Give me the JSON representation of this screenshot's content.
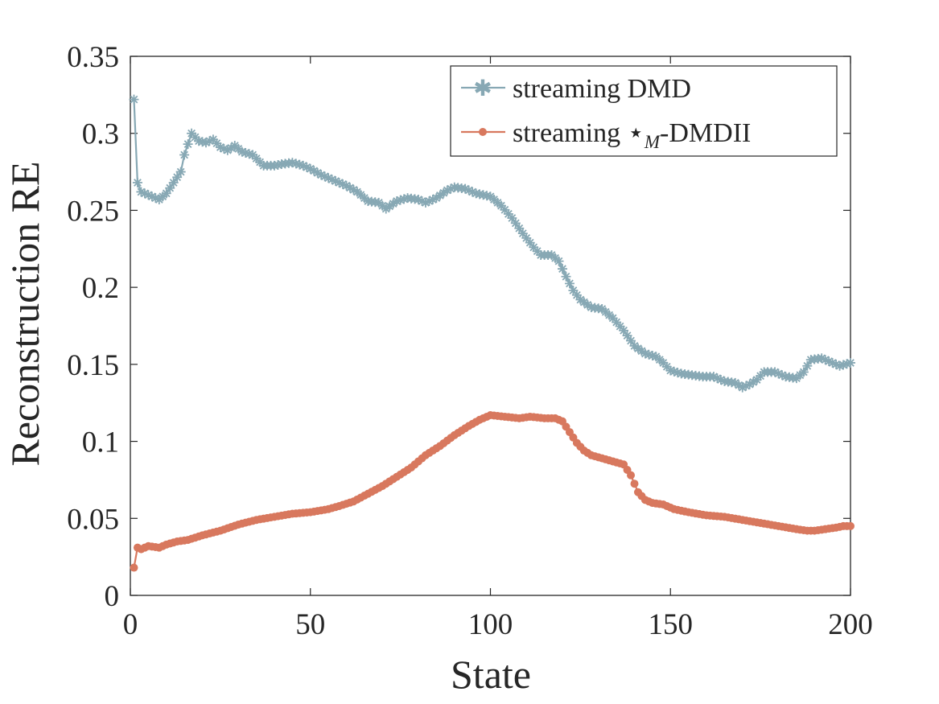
{
  "chart_data": {
    "type": "line",
    "xlabel": "State",
    "ylabel": "Reconstruction RE",
    "xlim": [
      0,
      200
    ],
    "ylim": [
      0,
      0.35
    ],
    "xticks": [
      0,
      50,
      100,
      150,
      200
    ],
    "xtick_labels": [
      "0",
      "50",
      "100",
      "150",
      "200"
    ],
    "yticks": [
      0,
      0.05,
      0.1,
      0.15,
      0.2,
      0.25,
      0.3,
      0.35
    ],
    "ytick_labels": [
      "0",
      "0.05",
      "0.1",
      "0.15",
      "0.2",
      "0.25",
      "0.3",
      "0.35"
    ],
    "legend_position": "top-right",
    "grid": false,
    "series": [
      {
        "name": "streaming DMD",
        "legend_prefix": "streaming ",
        "legend_main": "DMD",
        "color": "#87a8b4",
        "marker": "asterisk",
        "points": [
          [
            1,
            0.322
          ],
          [
            2,
            0.268
          ],
          [
            3,
            0.262
          ],
          [
            5,
            0.26
          ],
          [
            8,
            0.257
          ],
          [
            10,
            0.261
          ],
          [
            12,
            0.268
          ],
          [
            14,
            0.275
          ],
          [
            15,
            0.286
          ],
          [
            17,
            0.3
          ],
          [
            19,
            0.295
          ],
          [
            21,
            0.294
          ],
          [
            23,
            0.296
          ],
          [
            25,
            0.291
          ],
          [
            27,
            0.289
          ],
          [
            29,
            0.292
          ],
          [
            31,
            0.288
          ],
          [
            34,
            0.286
          ],
          [
            37,
            0.279
          ],
          [
            40,
            0.279
          ],
          [
            42,
            0.28
          ],
          [
            45,
            0.281
          ],
          [
            48,
            0.279
          ],
          [
            50,
            0.277
          ],
          [
            53,
            0.273
          ],
          [
            56,
            0.27
          ],
          [
            60,
            0.266
          ],
          [
            63,
            0.262
          ],
          [
            66,
            0.256
          ],
          [
            69,
            0.255
          ],
          [
            71,
            0.251
          ],
          [
            74,
            0.256
          ],
          [
            77,
            0.258
          ],
          [
            80,
            0.257
          ],
          [
            82,
            0.255
          ],
          [
            85,
            0.258
          ],
          [
            88,
            0.263
          ],
          [
            90,
            0.265
          ],
          [
            93,
            0.264
          ],
          [
            96,
            0.261
          ],
          [
            100,
            0.259
          ],
          [
            103,
            0.253
          ],
          [
            106,
            0.245
          ],
          [
            109,
            0.235
          ],
          [
            112,
            0.226
          ],
          [
            114,
            0.221
          ],
          [
            117,
            0.221
          ],
          [
            119,
            0.217
          ],
          [
            121,
            0.207
          ],
          [
            123,
            0.198
          ],
          [
            125,
            0.192
          ],
          [
            128,
            0.187
          ],
          [
            131,
            0.186
          ],
          [
            134,
            0.18
          ],
          [
            137,
            0.172
          ],
          [
            140,
            0.162
          ],
          [
            143,
            0.157
          ],
          [
            146,
            0.155
          ],
          [
            148,
            0.151
          ],
          [
            150,
            0.146
          ],
          [
            153,
            0.144
          ],
          [
            156,
            0.143
          ],
          [
            159,
            0.142
          ],
          [
            162,
            0.142
          ],
          [
            165,
            0.139
          ],
          [
            168,
            0.138
          ],
          [
            170,
            0.135
          ],
          [
            172,
            0.137
          ],
          [
            174,
            0.14
          ],
          [
            176,
            0.145
          ],
          [
            179,
            0.145
          ],
          [
            182,
            0.142
          ],
          [
            185,
            0.141
          ],
          [
            187,
            0.145
          ],
          [
            189,
            0.153
          ],
          [
            192,
            0.154
          ],
          [
            195,
            0.151
          ],
          [
            197,
            0.149
          ],
          [
            200,
            0.151
          ]
        ]
      },
      {
        "name": "streaming ⋆M-DMDII",
        "legend_prefix": "streaming ",
        "legend_star": "⋆",
        "legend_sub": "M",
        "legend_main": "-DMDII",
        "color": "#d8785e",
        "marker": "dot",
        "points": [
          [
            1,
            0.018
          ],
          [
            2,
            0.031
          ],
          [
            3,
            0.03
          ],
          [
            5,
            0.032
          ],
          [
            8,
            0.031
          ],
          [
            10,
            0.033
          ],
          [
            13,
            0.035
          ],
          [
            16,
            0.036
          ],
          [
            20,
            0.039
          ],
          [
            25,
            0.042
          ],
          [
            30,
            0.046
          ],
          [
            35,
            0.049
          ],
          [
            40,
            0.051
          ],
          [
            45,
            0.053
          ],
          [
            50,
            0.054
          ],
          [
            55,
            0.056
          ],
          [
            58,
            0.058
          ],
          [
            62,
            0.061
          ],
          [
            66,
            0.066
          ],
          [
            70,
            0.071
          ],
          [
            74,
            0.077
          ],
          [
            78,
            0.083
          ],
          [
            82,
            0.091
          ],
          [
            86,
            0.097
          ],
          [
            90,
            0.104
          ],
          [
            94,
            0.11
          ],
          [
            97,
            0.114
          ],
          [
            100,
            0.117
          ],
          [
            104,
            0.116
          ],
          [
            108,
            0.115
          ],
          [
            111,
            0.116
          ],
          [
            115,
            0.115
          ],
          [
            118,
            0.115
          ],
          [
            120,
            0.113
          ],
          [
            122,
            0.106
          ],
          [
            124,
            0.099
          ],
          [
            126,
            0.094
          ],
          [
            128,
            0.091
          ],
          [
            131,
            0.089
          ],
          [
            134,
            0.087
          ],
          [
            137,
            0.085
          ],
          [
            139,
            0.078
          ],
          [
            141,
            0.067
          ],
          [
            143,
            0.062
          ],
          [
            145,
            0.06
          ],
          [
            148,
            0.059
          ],
          [
            151,
            0.056
          ],
          [
            155,
            0.054
          ],
          [
            160,
            0.052
          ],
          [
            165,
            0.051
          ],
          [
            170,
            0.049
          ],
          [
            175,
            0.047
          ],
          [
            180,
            0.045
          ],
          [
            185,
            0.043
          ],
          [
            188,
            0.042
          ],
          [
            190,
            0.042
          ],
          [
            193,
            0.043
          ],
          [
            196,
            0.044
          ],
          [
            198,
            0.045
          ],
          [
            200,
            0.045
          ]
        ]
      }
    ]
  }
}
